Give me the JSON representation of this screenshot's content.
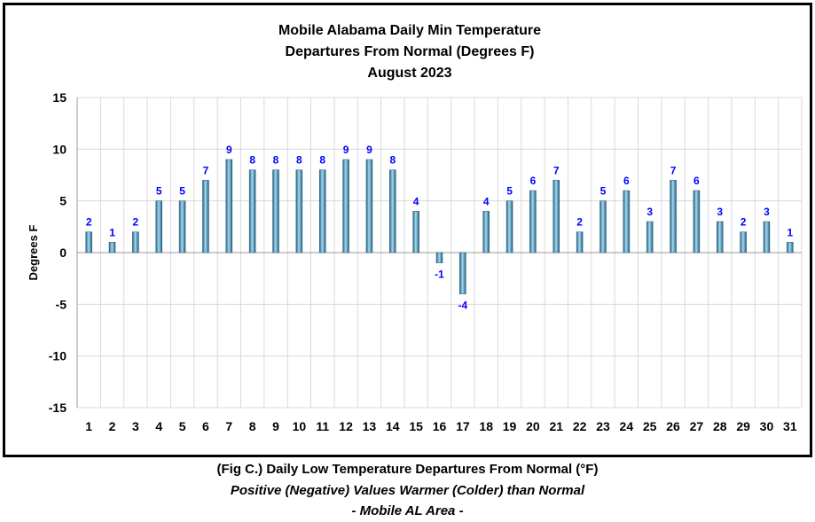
{
  "chart_data": {
    "type": "bar",
    "title": [
      "Mobile Alabama Daily Min Temperature",
      "Departures From Normal (Degrees F)",
      "August 2023"
    ],
    "xlabel": "",
    "ylabel": "Degrees F",
    "ylim": [
      -15,
      15
    ],
    "yticks": [
      15,
      10,
      5,
      0,
      -5,
      -10,
      -15
    ],
    "grid": true,
    "categories": [
      "1",
      "2",
      "3",
      "4",
      "5",
      "6",
      "7",
      "8",
      "9",
      "10",
      "11",
      "12",
      "13",
      "14",
      "15",
      "16",
      "17",
      "18",
      "19",
      "20",
      "21",
      "22",
      "23",
      "24",
      "25",
      "26",
      "27",
      "28",
      "29",
      "30",
      "31"
    ],
    "values": [
      2,
      1,
      2,
      5,
      5,
      7,
      9,
      8,
      8,
      8,
      8,
      9,
      9,
      8,
      4,
      -1,
      -4,
      4,
      5,
      6,
      7,
      2,
      5,
      6,
      3,
      7,
      6,
      3,
      2,
      3,
      1
    ],
    "colors": {
      "bar": "#3f8fb8",
      "bar_light": "#a9d8ee",
      "bar_dark": "#1e5f80",
      "data_label": "#0000ff",
      "grid": "#d9d9d9"
    }
  },
  "caption": {
    "line1": "(Fig C.) Daily Low Temperature Departures From Normal (°F)",
    "line2": "Positive (Negative) Values Warmer (Colder) than Normal",
    "line3": "- Mobile AL Area -"
  }
}
